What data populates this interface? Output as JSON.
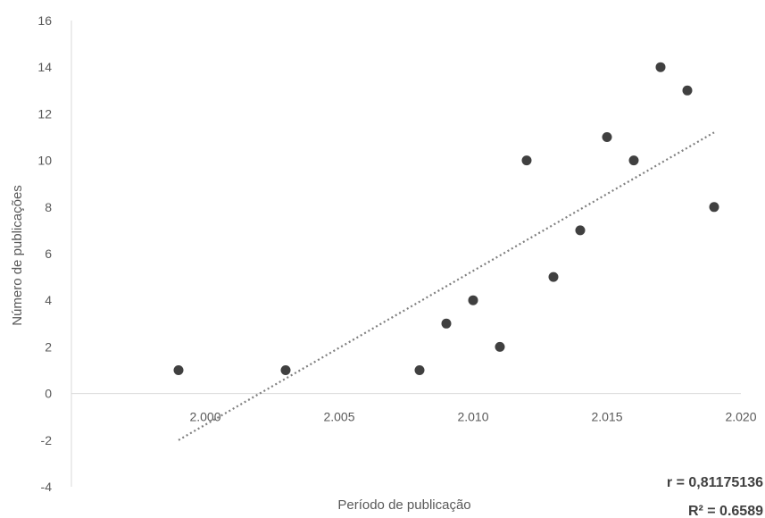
{
  "chart_data": {
    "type": "scatter",
    "title": "",
    "xlabel": "Período de publicação",
    "ylabel": "Número de publicações",
    "xlim": [
      1995,
      2020
    ],
    "ylim": [
      -4,
      16
    ],
    "x_ticks": [
      2000,
      2005,
      2010,
      2015,
      2020
    ],
    "x_tick_labels": [
      "2.000",
      "2.005",
      "2.010",
      "2.015",
      "2.020"
    ],
    "y_ticks": [
      -4,
      -2,
      0,
      2,
      4,
      6,
      8,
      10,
      12,
      14,
      16
    ],
    "y_tick_labels": [
      "-4",
      "-2",
      "0",
      "2",
      "4",
      "6",
      "8",
      "10",
      "12",
      "14",
      "16"
    ],
    "grid": false,
    "legend": "none",
    "series": [
      {
        "x": [
          1999,
          2003,
          2008,
          2009,
          2010,
          2011,
          2012,
          2013,
          2014,
          2015,
          2016,
          2017,
          2018,
          2019
        ],
        "y": [
          1,
          1,
          1,
          3,
          4,
          2,
          10,
          5,
          7,
          11,
          10,
          14,
          13,
          8
        ],
        "color": "#404040"
      }
    ],
    "trendline": {
      "type": "linear",
      "style": "dotted",
      "color": "#7f7f7f",
      "x": [
        1999,
        2019
      ],
      "y": [
        -2.0,
        11.2
      ]
    },
    "annotations": {
      "r": "r = 0,81175136",
      "r2": "R² = 0.6589"
    }
  }
}
